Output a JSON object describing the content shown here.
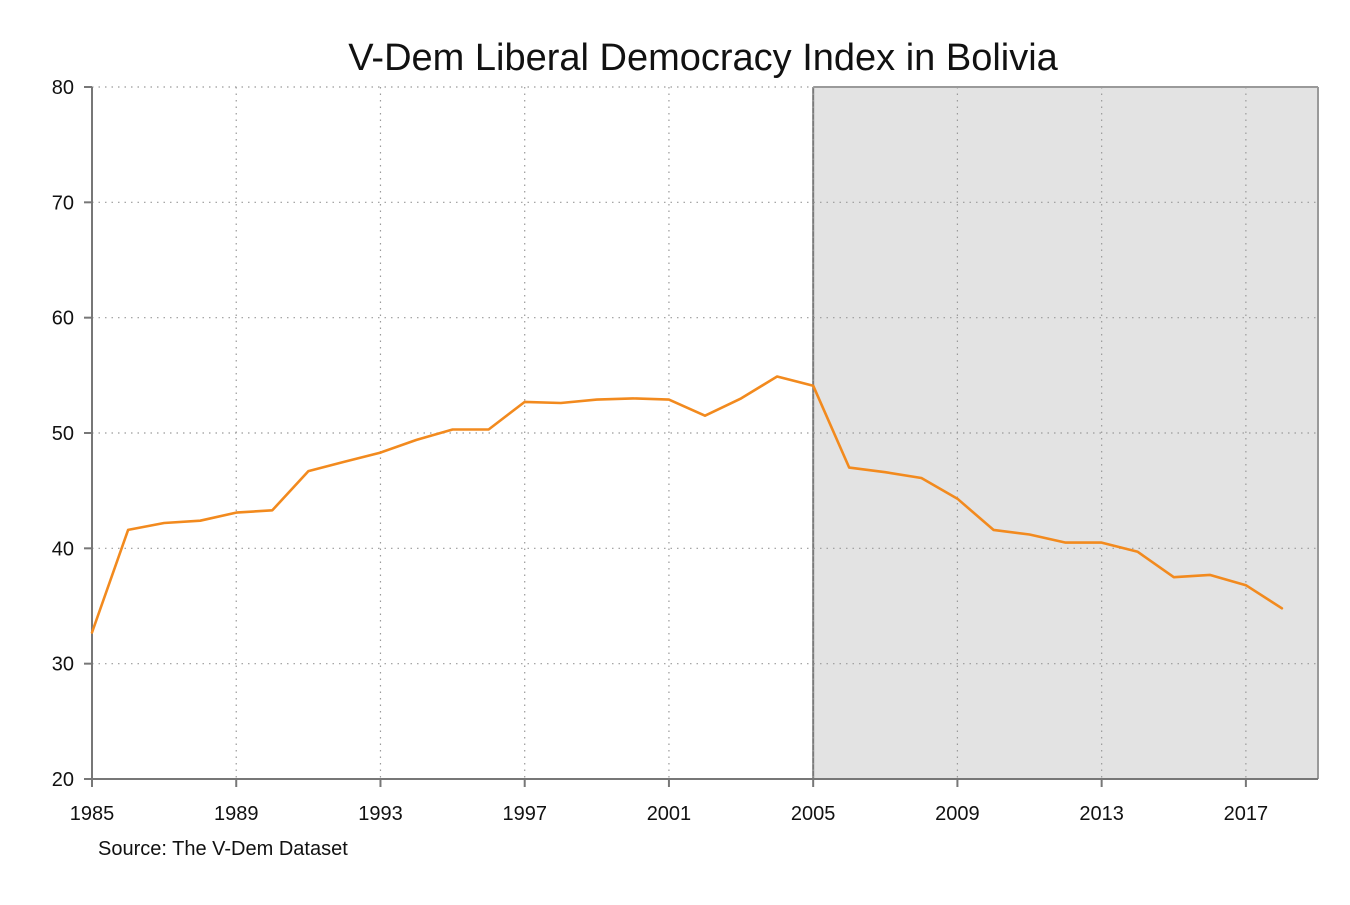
{
  "chart_data": {
    "type": "line",
    "title": "V-Dem Liberal Democracy Index in Bolivia",
    "source": "Source: The V-Dem Dataset",
    "xlabel": "",
    "ylabel": "",
    "xlim": [
      1985,
      2019
    ],
    "ylim": [
      20,
      80
    ],
    "x_ticks": [
      1985,
      1989,
      1993,
      1997,
      2001,
      2005,
      2009,
      2013,
      2017
    ],
    "y_ticks": [
      20,
      30,
      40,
      50,
      60,
      70,
      80
    ],
    "grid": true,
    "shaded_region": {
      "x_start": 2005,
      "x_end": 2019,
      "color": "#e3e3e3"
    },
    "line_color": "#f28a1e",
    "series": [
      {
        "x": [
          1985,
          1986,
          1987,
          1988,
          1989,
          1990,
          1991,
          1992,
          1993,
          1994,
          1995,
          1996,
          1997,
          1998,
          1999,
          2000,
          2001,
          2002,
          2003,
          2004,
          2005,
          2006,
          2007,
          2008,
          2009,
          2010,
          2011,
          2012,
          2013,
          2014,
          2015,
          2016,
          2017,
          2018
        ],
        "values": [
          32.7,
          41.6,
          42.2,
          42.4,
          43.1,
          43.3,
          46.7,
          47.5,
          48.3,
          49.4,
          50.3,
          50.3,
          52.7,
          52.6,
          52.9,
          53.0,
          52.9,
          51.5,
          53.0,
          54.9,
          54.1,
          47.0,
          46.6,
          46.1,
          44.3,
          41.6,
          41.2,
          40.5,
          40.5,
          39.7,
          37.5,
          37.7,
          36.8,
          34.8
        ]
      }
    ]
  }
}
